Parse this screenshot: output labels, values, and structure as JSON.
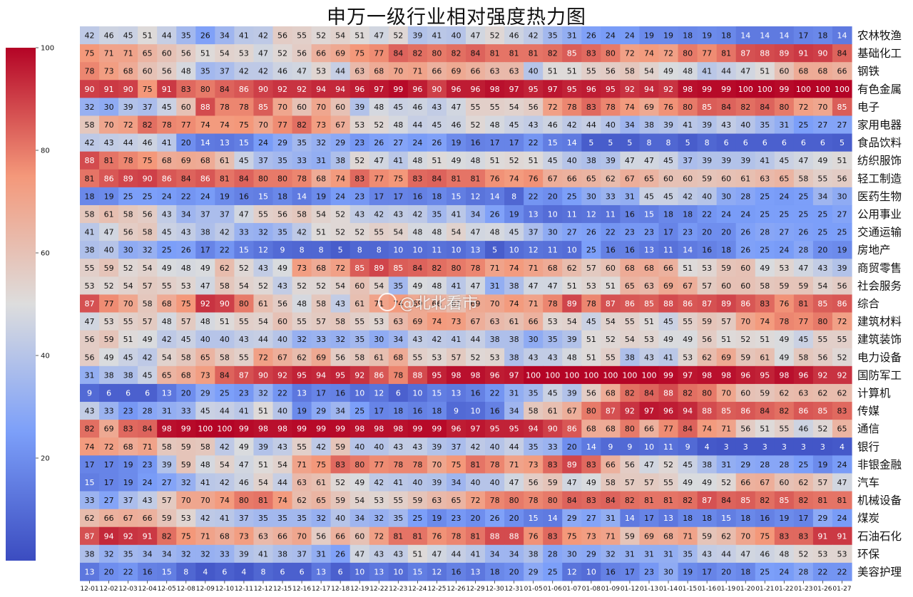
{
  "chart_data": {
    "type": "heatmap",
    "title": "申万一级行业相对强度热力图",
    "x": [
      "12-01",
      "12-02",
      "12-03",
      "12-04",
      "12-05",
      "12-08",
      "12-09",
      "12-10",
      "12-11",
      "12-12",
      "12-15",
      "12-16",
      "12-17",
      "12-18",
      "12-19",
      "12-22",
      "12-23",
      "12-24",
      "12-25",
      "12-26",
      "12-29",
      "12-30",
      "12-31",
      "01-05",
      "01-06",
      "01-07",
      "01-08",
      "01-09",
      "01-12",
      "01-13",
      "01-14",
      "01-15",
      "01-16",
      "01-19",
      "01-20",
      "01-21",
      "01-22",
      "01-23",
      "01-26",
      "01-27"
    ],
    "y": [
      "农林牧渔",
      "基础化工",
      "钢铁",
      "有色金属",
      "电子",
      "家用电器",
      "食品饮料",
      "纺织服饰",
      "轻工制造",
      "医药生物",
      "公用事业",
      "交通运输",
      "房地产",
      "商贸零售",
      "社会服务",
      "综合",
      "建筑材料",
      "建筑装饰",
      "电力设备",
      "国防军工",
      "计算机",
      "传媒",
      "通信",
      "银行",
      "非银金融",
      "汽车",
      "机械设备",
      "煤炭",
      "石油石化",
      "环保",
      "美容护理"
    ],
    "values": [
      [
        42,
        46,
        45,
        51,
        44,
        35,
        26,
        34,
        41,
        42,
        56,
        55,
        52,
        54,
        51,
        47,
        52,
        39,
        41,
        40,
        47,
        52,
        46,
        42,
        35,
        31,
        26,
        24,
        24,
        19,
        19,
        18,
        19,
        18,
        14,
        14,
        14,
        17,
        18,
        14
      ],
      [
        75,
        71,
        71,
        65,
        60,
        56,
        51,
        54,
        53,
        47,
        52,
        56,
        66,
        69,
        75,
        77,
        84,
        82,
        80,
        82,
        84,
        81,
        81,
        81,
        82,
        85,
        83,
        80,
        72,
        74,
        72,
        80,
        77,
        81,
        87,
        88,
        89,
        91,
        90,
        84
      ],
      [
        78,
        73,
        68,
        60,
        56,
        48,
        35,
        37,
        42,
        42,
        46,
        47,
        53,
        44,
        63,
        68,
        70,
        71,
        66,
        69,
        66,
        63,
        63,
        40,
        51,
        51,
        55,
        56,
        58,
        54,
        49,
        48,
        41,
        44,
        47,
        51,
        60,
        68,
        68,
        66
      ],
      [
        90,
        91,
        90,
        75,
        91,
        83,
        80,
        84,
        86,
        90,
        92,
        92,
        94,
        94,
        96,
        97,
        99,
        96,
        90,
        96,
        96,
        98,
        97,
        95,
        97,
        95,
        96,
        95,
        92,
        94,
        92,
        98,
        99,
        99,
        100,
        100,
        99,
        100,
        100,
        100
      ],
      [
        32,
        30,
        39,
        37,
        45,
        60,
        88,
        78,
        78,
        85,
        70,
        60,
        70,
        60,
        39,
        48,
        45,
        46,
        43,
        47,
        55,
        55,
        54,
        56,
        72,
        78,
        83,
        78,
        74,
        69,
        76,
        80,
        85,
        84,
        82,
        84,
        80,
        72,
        70,
        85
      ],
      [
        58,
        70,
        72,
        82,
        78,
        77,
        74,
        74,
        75,
        70,
        77,
        82,
        73,
        67,
        53,
        52,
        48,
        44,
        45,
        46,
        52,
        48,
        45,
        43,
        46,
        42,
        44,
        40,
        34,
        38,
        39,
        41,
        39,
        43,
        40,
        35,
        31,
        25,
        27,
        27
      ],
      [
        42,
        43,
        44,
        46,
        41,
        20,
        14,
        13,
        15,
        24,
        29,
        35,
        32,
        29,
        23,
        26,
        27,
        24,
        26,
        19,
        16,
        17,
        17,
        22,
        15,
        14,
        5,
        5,
        5,
        8,
        8,
        5,
        8,
        6,
        6,
        6,
        6,
        6,
        6,
        5
      ],
      [
        88,
        81,
        78,
        75,
        68,
        69,
        68,
        61,
        45,
        37,
        35,
        33,
        31,
        38,
        52,
        47,
        41,
        48,
        51,
        49,
        48,
        51,
        52,
        51,
        45,
        40,
        38,
        39,
        47,
        47,
        45,
        37,
        39,
        39,
        39,
        41,
        45,
        47,
        49,
        51
      ],
      [
        81,
        86,
        89,
        90,
        86,
        84,
        86,
        81,
        84,
        80,
        80,
        78,
        68,
        74,
        83,
        77,
        75,
        83,
        84,
        81,
        81,
        76,
        74,
        76,
        67,
        66,
        65,
        62,
        67,
        65,
        60,
        60,
        59,
        60,
        61,
        63,
        65,
        58,
        55,
        56
      ],
      [
        18,
        19,
        25,
        25,
        24,
        22,
        24,
        19,
        16,
        15,
        18,
        14,
        19,
        24,
        23,
        17,
        17,
        16,
        18,
        15,
        12,
        14,
        8,
        22,
        20,
        25,
        30,
        33,
        31,
        45,
        45,
        42,
        40,
        30,
        28,
        25,
        24,
        25,
        34,
        30
      ],
      [
        58,
        61,
        58,
        56,
        43,
        34,
        37,
        37,
        47,
        55,
        56,
        58,
        54,
        52,
        43,
        42,
        43,
        42,
        35,
        41,
        34,
        26,
        19,
        13,
        10,
        11,
        12,
        11,
        16,
        15,
        18,
        18,
        22,
        24,
        24,
        25,
        25,
        25,
        25,
        27
      ],
      [
        41,
        47,
        56,
        58,
        45,
        43,
        38,
        42,
        33,
        32,
        35,
        42,
        51,
        52,
        52,
        55,
        54,
        48,
        48,
        54,
        47,
        48,
        45,
        37,
        30,
        27,
        26,
        22,
        23,
        23,
        17,
        23,
        20,
        20,
        26,
        28,
        27,
        26,
        25,
        25
      ],
      [
        38,
        40,
        30,
        32,
        25,
        26,
        17,
        22,
        15,
        12,
        9,
        8,
        8,
        5,
        8,
        8,
        10,
        10,
        11,
        10,
        13,
        5,
        10,
        12,
        11,
        10,
        25,
        16,
        16,
        13,
        11,
        14,
        16,
        18,
        26,
        25,
        24,
        28,
        20,
        19
      ],
      [
        55,
        59,
        52,
        54,
        49,
        48,
        49,
        62,
        52,
        43,
        49,
        73,
        68,
        72,
        85,
        89,
        85,
        84,
        82,
        80,
        78,
        71,
        74,
        71,
        68,
        62,
        57,
        60,
        68,
        68,
        66,
        51,
        53,
        59,
        60,
        49,
        53,
        47,
        43,
        39
      ],
      [
        53,
        52,
        54,
        57,
        55,
        53,
        47,
        58,
        54,
        52,
        43,
        52,
        52,
        54,
        60,
        54,
        35,
        49,
        48,
        41,
        47,
        31,
        38,
        47,
        47,
        51,
        53,
        51,
        65,
        63,
        69,
        67,
        57,
        60,
        60,
        58,
        59,
        59,
        54,
        56
      ],
      [
        87,
        77,
        70,
        58,
        68,
        75,
        92,
        90,
        80,
        61,
        56,
        48,
        58,
        43,
        61,
        71,
        74,
        69,
        66,
        61,
        69,
        70,
        74,
        71,
        78,
        89,
        78,
        87,
        86,
        85,
        88,
        86,
        87,
        89,
        86,
        83,
        76,
        81,
        85,
        86
      ],
      [
        47,
        53,
        55,
        57,
        48,
        57,
        48,
        51,
        55,
        54,
        60,
        55,
        57,
        58,
        55,
        53,
        63,
        69,
        74,
        73,
        67,
        63,
        61,
        66,
        53,
        54,
        45,
        54,
        55,
        51,
        45,
        55,
        59,
        57,
        70,
        74,
        78,
        77,
        80,
        72
      ],
      [
        56,
        59,
        51,
        49,
        42,
        45,
        40,
        40,
        43,
        44,
        40,
        32,
        33,
        32,
        35,
        30,
        34,
        43,
        42,
        41,
        44,
        38,
        38,
        30,
        35,
        39,
        51,
        52,
        54,
        53,
        49,
        49,
        56,
        51,
        52,
        51,
        49,
        45,
        55,
        55
      ],
      [
        56,
        49,
        45,
        42,
        54,
        58,
        65,
        58,
        55,
        72,
        67,
        62,
        69,
        56,
        58,
        61,
        68,
        55,
        53,
        57,
        52,
        53,
        38,
        43,
        43,
        48,
        51,
        55,
        38,
        43,
        41,
        53,
        62,
        69,
        59,
        61,
        49,
        58,
        56,
        52
      ],
      [
        31,
        38,
        38,
        45,
        65,
        68,
        73,
        84,
        87,
        90,
        92,
        95,
        94,
        95,
        92,
        86,
        78,
        88,
        95,
        98,
        98,
        96,
        97,
        100,
        100,
        100,
        100,
        100,
        100,
        100,
        99,
        97,
        98,
        98,
        96,
        95,
        98,
        96,
        92,
        92
      ],
      [
        9,
        6,
        6,
        6,
        13,
        20,
        29,
        25,
        23,
        32,
        22,
        13,
        17,
        16,
        10,
        12,
        6,
        10,
        15,
        13,
        16,
        22,
        31,
        35,
        45,
        39,
        56,
        68,
        82,
        84,
        88,
        82,
        80,
        70,
        60,
        59,
        62,
        63,
        62,
        62
      ],
      [
        43,
        33,
        23,
        28,
        31,
        33,
        45,
        44,
        41,
        51,
        40,
        19,
        29,
        34,
        25,
        17,
        18,
        16,
        18,
        9,
        10,
        16,
        34,
        58,
        61,
        67,
        80,
        87,
        92,
        97,
        96,
        94,
        88,
        85,
        86,
        84,
        82,
        86,
        85,
        83
      ],
      [
        82,
        69,
        83,
        84,
        98,
        99,
        100,
        100,
        99,
        98,
        98,
        99,
        99,
        99,
        98,
        98,
        98,
        99,
        99,
        96,
        97,
        95,
        95,
        94,
        90,
        86,
        68,
        68,
        80,
        66,
        77,
        84,
        74,
        71,
        56,
        51,
        55,
        46,
        52,
        65
      ],
      [
        74,
        72,
        68,
        71,
        58,
        59,
        58,
        42,
        49,
        39,
        43,
        55,
        42,
        59,
        40,
        40,
        43,
        43,
        39,
        37,
        42,
        40,
        44,
        35,
        33,
        20,
        14,
        9,
        9,
        10,
        11,
        9,
        4,
        3,
        3,
        3,
        3,
        3,
        3,
        4
      ],
      [
        17,
        17,
        19,
        23,
        39,
        59,
        48,
        54,
        47,
        51,
        54,
        71,
        75,
        83,
        80,
        77,
        78,
        78,
        70,
        75,
        81,
        78,
        71,
        73,
        83,
        89,
        83,
        66,
        56,
        47,
        52,
        45,
        38,
        31,
        29,
        28,
        28,
        25,
        19,
        24
      ],
      [
        15,
        17,
        19,
        24,
        27,
        32,
        41,
        42,
        46,
        54,
        44,
        63,
        61,
        52,
        49,
        42,
        41,
        40,
        39,
        34,
        40,
        40,
        47,
        56,
        59,
        47,
        49,
        58,
        57,
        57,
        55,
        49,
        49,
        52,
        66,
        67,
        60,
        62,
        57,
        47
      ],
      [
        33,
        27,
        37,
        43,
        57,
        70,
        70,
        74,
        80,
        81,
        74,
        62,
        65,
        59,
        54,
        53,
        55,
        59,
        63,
        65,
        72,
        78,
        80,
        78,
        80,
        84,
        83,
        84,
        82,
        81,
        81,
        82,
        87,
        84,
        85,
        82,
        85,
        82,
        81,
        81
      ],
      [
        62,
        66,
        67,
        66,
        59,
        53,
        42,
        41,
        37,
        35,
        35,
        35,
        32,
        40,
        34,
        32,
        35,
        25,
        19,
        23,
        20,
        26,
        20,
        15,
        14,
        29,
        27,
        31,
        14,
        17,
        13,
        18,
        18,
        15,
        18,
        16,
        19,
        17,
        29,
        24
      ],
      [
        87,
        94,
        92,
        91,
        82,
        75,
        71,
        68,
        73,
        63,
        66,
        70,
        56,
        66,
        60,
        72,
        81,
        81,
        76,
        78,
        81,
        88,
        88,
        76,
        83,
        75,
        73,
        71,
        59,
        69,
        68,
        71,
        59,
        62,
        70,
        75,
        83,
        83,
        91,
        91
      ],
      [
        38,
        32,
        35,
        34,
        34,
        32,
        32,
        33,
        39,
        41,
        38,
        37,
        31,
        26,
        47,
        43,
        43,
        51,
        47,
        44,
        41,
        34,
        34,
        38,
        28,
        30,
        29,
        32,
        31,
        31,
        31,
        35,
        43,
        44,
        47,
        46,
        48,
        52,
        53,
        53
      ],
      [
        13,
        20,
        22,
        16,
        15,
        8,
        4,
        6,
        4,
        8,
        6,
        6,
        13,
        6,
        10,
        13,
        10,
        15,
        12,
        16,
        13,
        18,
        20,
        29,
        25,
        12,
        10,
        16,
        17,
        23,
        30,
        19,
        17,
        20,
        18,
        25,
        24,
        28,
        22,
        22
      ]
    ],
    "colorbar": {
      "range": [
        0,
        100
      ],
      "ticks": [
        20,
        40,
        60,
        80,
        100
      ],
      "colormap": "coolwarm"
    }
  },
  "watermark": "@北北看市"
}
